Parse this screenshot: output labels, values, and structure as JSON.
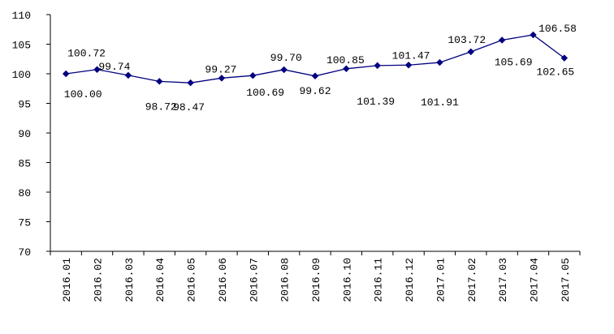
{
  "chart_data": {
    "type": "line",
    "title": "",
    "xlabel": "",
    "ylabel": "",
    "categories": [
      "2016.01",
      "2016.02",
      "2016.03",
      "2016.04",
      "2016.05",
      "2016.06",
      "2016.07",
      "2016.08",
      "2016.09",
      "2016.10",
      "2016.11",
      "2016.12",
      "2017.01",
      "2017.02",
      "2017.03",
      "2017.04",
      "2017.05"
    ],
    "series": [
      {
        "values": [
          100.0,
          100.72,
          99.74,
          98.72,
          98.47,
          99.27,
          99.7,
          100.69,
          99.62,
          100.85,
          101.39,
          101.47,
          101.91,
          103.72,
          105.69,
          106.58,
          102.65
        ],
        "color": "#000080",
        "marker": "diamond"
      }
    ],
    "ylim": [
      70,
      110
    ],
    "yticks": [
      70,
      75,
      80,
      85,
      90,
      95,
      100,
      105,
      110
    ],
    "grid": false,
    "legend": "none",
    "data_labels": true
  }
}
